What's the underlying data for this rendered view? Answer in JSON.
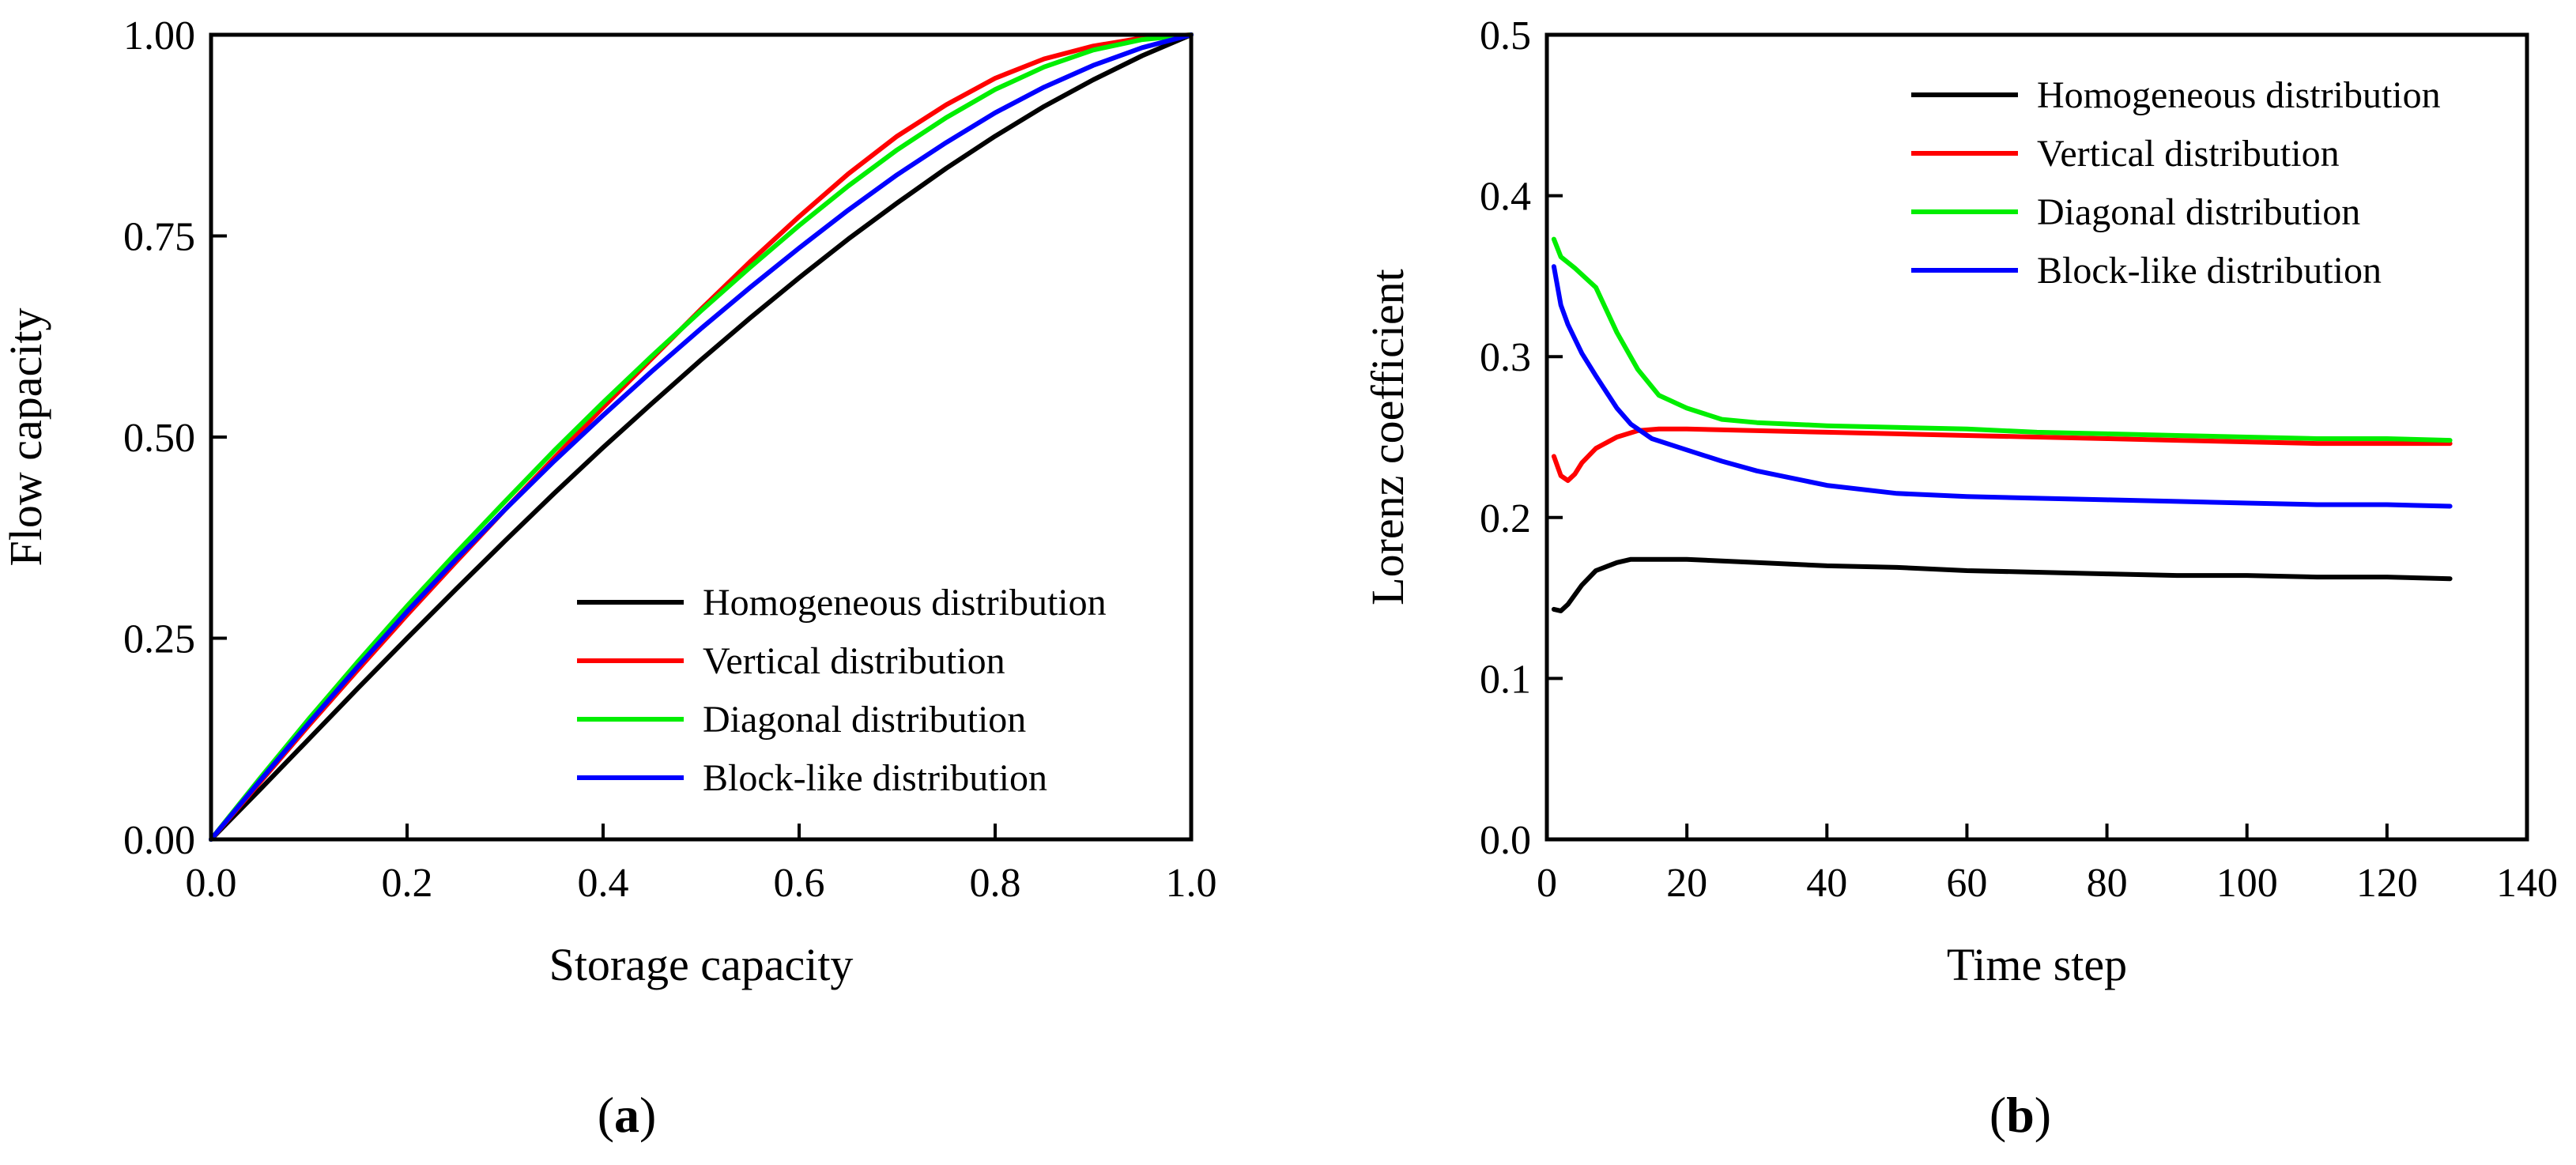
{
  "chart_data": [
    {
      "type": "line",
      "panel_label": "a",
      "title": "",
      "xlabel": "Storage capacity",
      "ylabel": "Flow capacity",
      "xlim": [
        0,
        1
      ],
      "ylim": [
        0,
        1
      ],
      "xticks": [
        0.0,
        0.2,
        0.4,
        0.6,
        0.8,
        1.0
      ],
      "yticks": [
        0.0,
        0.25,
        0.5,
        0.75,
        1.0
      ],
      "xtick_labels": [
        "0.0",
        "0.2",
        "0.4",
        "0.6",
        "0.8",
        "1.0"
      ],
      "ytick_labels": [
        "0.00",
        "0.25",
        "0.50",
        "0.75",
        "1.00"
      ],
      "grid": false,
      "legend_position": "bottom-right",
      "series": [
        {
          "name": "Homogeneous distribution",
          "color": "#000000",
          "x": [
            0,
            0.05,
            0.1,
            0.15,
            0.2,
            0.25,
            0.3,
            0.35,
            0.4,
            0.45,
            0.5,
            0.55,
            0.6,
            0.65,
            0.7,
            0.75,
            0.8,
            0.85,
            0.9,
            0.95,
            1.0
          ],
          "y": [
            0,
            0.062,
            0.125,
            0.188,
            0.25,
            0.311,
            0.371,
            0.43,
            0.487,
            0.542,
            0.596,
            0.648,
            0.698,
            0.746,
            0.791,
            0.834,
            0.874,
            0.911,
            0.944,
            0.974,
            1.0
          ]
        },
        {
          "name": "Vertical distribution",
          "color": "#ff0000",
          "x": [
            0,
            0.05,
            0.1,
            0.15,
            0.2,
            0.25,
            0.3,
            0.35,
            0.4,
            0.45,
            0.5,
            0.55,
            0.6,
            0.65,
            0.7,
            0.75,
            0.8,
            0.85,
            0.9,
            0.95,
            1.0
          ],
          "y": [
            0,
            0.071,
            0.142,
            0.211,
            0.279,
            0.345,
            0.41,
            0.474,
            0.537,
            0.598,
            0.659,
            0.718,
            0.774,
            0.827,
            0.874,
            0.913,
            0.946,
            0.97,
            0.986,
            0.996,
            1.0
          ]
        },
        {
          "name": "Diagonal distribution",
          "color": "#00ee00",
          "x": [
            0,
            0.05,
            0.1,
            0.15,
            0.2,
            0.25,
            0.3,
            0.35,
            0.4,
            0.45,
            0.5,
            0.55,
            0.6,
            0.65,
            0.7,
            0.75,
            0.8,
            0.85,
            0.9,
            0.95,
            1.0
          ],
          "y": [
            0,
            0.076,
            0.15,
            0.221,
            0.29,
            0.356,
            0.42,
            0.483,
            0.543,
            0.601,
            0.657,
            0.711,
            0.763,
            0.812,
            0.857,
            0.897,
            0.932,
            0.96,
            0.981,
            0.994,
            1.0
          ]
        },
        {
          "name": "Block-like distribution",
          "color": "#0000ff",
          "x": [
            0,
            0.05,
            0.1,
            0.15,
            0.2,
            0.25,
            0.3,
            0.35,
            0.4,
            0.45,
            0.5,
            0.55,
            0.6,
            0.65,
            0.7,
            0.75,
            0.8,
            0.85,
            0.9,
            0.95,
            1.0
          ],
          "y": [
            0,
            0.073,
            0.145,
            0.215,
            0.283,
            0.348,
            0.41,
            0.47,
            0.527,
            0.582,
            0.635,
            0.686,
            0.735,
            0.782,
            0.826,
            0.866,
            0.903,
            0.935,
            0.962,
            0.984,
            1.0
          ]
        }
      ]
    },
    {
      "type": "line",
      "panel_label": "b",
      "title": "",
      "xlabel": "Time step",
      "ylabel": "Lorenz coefficient",
      "xlim": [
        0,
        140
      ],
      "ylim": [
        0,
        0.5
      ],
      "xticks": [
        0,
        20,
        40,
        60,
        80,
        100,
        120,
        140
      ],
      "yticks": [
        0.0,
        0.1,
        0.2,
        0.3,
        0.4,
        0.5
      ],
      "xtick_labels": [
        "0",
        "20",
        "40",
        "60",
        "80",
        "100",
        "120",
        "140"
      ],
      "ytick_labels": [
        "0.0",
        "0.1",
        "0.2",
        "0.3",
        "0.4",
        "0.5"
      ],
      "grid": false,
      "legend_position": "top-right",
      "series": [
        {
          "name": "Homogeneous distribution",
          "color": "#000000",
          "x": [
            1,
            2,
            3,
            5,
            7,
            10,
            12,
            15,
            20,
            30,
            40,
            50,
            60,
            70,
            80,
            90,
            100,
            110,
            120,
            129
          ],
          "y": [
            0.143,
            0.142,
            0.146,
            0.158,
            0.167,
            0.172,
            0.174,
            0.174,
            0.174,
            0.172,
            0.17,
            0.169,
            0.167,
            0.166,
            0.165,
            0.164,
            0.164,
            0.163,
            0.163,
            0.162
          ]
        },
        {
          "name": "Vertical distribution",
          "color": "#ff0000",
          "x": [
            1,
            2,
            3,
            4,
            5,
            7,
            10,
            13,
            16,
            20,
            30,
            40,
            50,
            60,
            70,
            80,
            90,
            100,
            110,
            120,
            129
          ],
          "y": [
            0.238,
            0.226,
            0.223,
            0.227,
            0.234,
            0.243,
            0.25,
            0.254,
            0.255,
            0.255,
            0.254,
            0.253,
            0.252,
            0.251,
            0.25,
            0.249,
            0.248,
            0.247,
            0.246,
            0.246,
            0.246
          ]
        },
        {
          "name": "Diagonal distribution",
          "color": "#00ee00",
          "x": [
            1,
            2,
            4,
            7,
            10,
            13,
            16,
            20,
            25,
            30,
            40,
            50,
            60,
            70,
            80,
            90,
            100,
            110,
            120,
            129
          ],
          "y": [
            0.373,
            0.362,
            0.355,
            0.343,
            0.315,
            0.292,
            0.276,
            0.268,
            0.261,
            0.259,
            0.257,
            0.256,
            0.255,
            0.253,
            0.252,
            0.251,
            0.25,
            0.249,
            0.249,
            0.248
          ]
        },
        {
          "name": "Block-like distribution",
          "color": "#0000ff",
          "x": [
            1,
            2,
            3,
            5,
            7,
            10,
            12,
            15,
            20,
            25,
            30,
            40,
            50,
            60,
            70,
            80,
            90,
            100,
            110,
            120,
            129
          ],
          "y": [
            0.356,
            0.332,
            0.32,
            0.302,
            0.288,
            0.268,
            0.258,
            0.249,
            0.242,
            0.235,
            0.229,
            0.22,
            0.215,
            0.213,
            0.212,
            0.211,
            0.21,
            0.209,
            0.208,
            0.208,
            0.207
          ]
        }
      ]
    }
  ]
}
